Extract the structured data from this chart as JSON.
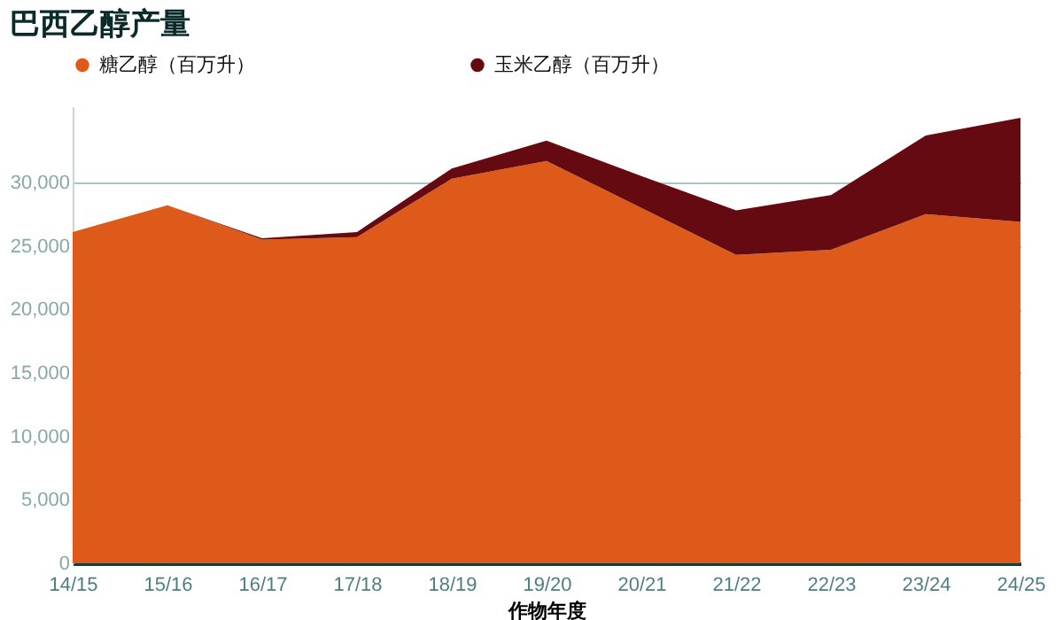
{
  "chart_data": {
    "type": "area",
    "title": "巴西乙醇产量",
    "xlabel": "作物年度",
    "stacked": true,
    "categories": [
      "14/15",
      "15/16",
      "16/17",
      "17/18",
      "18/19",
      "19/20",
      "20/21",
      "21/22",
      "22/23",
      "23/24",
      "24/25"
    ],
    "series": [
      {
        "name": "糖乙醇（百万升）",
        "color": "#dd5a1a",
        "values": [
          26100,
          28200,
          25500,
          25700,
          30300,
          31700,
          28000,
          24300,
          24700,
          27500,
          26900
        ]
      },
      {
        "name": "玉米乙醇（百万升）",
        "color": "#650a10",
        "values": [
          0,
          0,
          100,
          400,
          800,
          1600,
          2500,
          3500,
          4300,
          6200,
          8200
        ]
      }
    ],
    "ylim": [
      0,
      36000
    ],
    "yticks": [
      0,
      {
        "value": 5000,
        "label": "5,000"
      },
      {
        "value": 10000,
        "label": "10,000"
      },
      {
        "value": 15000,
        "label": "15,000"
      },
      {
        "value": 20000,
        "label": "20,000"
      },
      {
        "value": 25000,
        "label": "25,000"
      },
      {
        "value": 30000,
        "label": "30,000"
      }
    ],
    "grid": "y",
    "legend": "top left"
  }
}
